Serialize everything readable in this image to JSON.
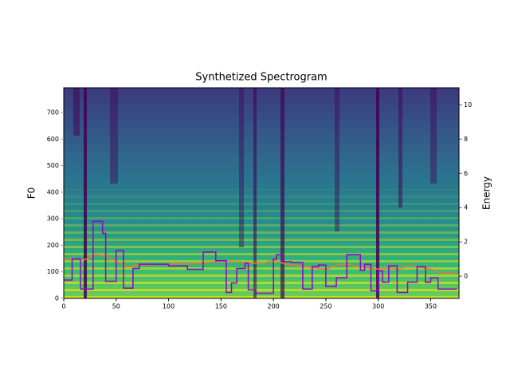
{
  "chart_data": {
    "type": "line",
    "title": "Synthetized Spectrogram",
    "ylabel": "F0",
    "y2label": "Energy",
    "xlim": [
      0,
      377
    ],
    "xticks": [
      0,
      50,
      100,
      150,
      200,
      250,
      300,
      350
    ],
    "ylim": [
      0,
      793
    ],
    "yticks": [
      0,
      100,
      200,
      300,
      400,
      500,
      600,
      700
    ],
    "y2lim": [
      -1.3,
      11
    ],
    "y2ticks": [
      0,
      2,
      4,
      6,
      8,
      10
    ],
    "series": [
      {
        "name": "F0",
        "color": "#f4733a",
        "step": false,
        "x": [
          0,
          10,
          20,
          30,
          40,
          50,
          60,
          70,
          100,
          120,
          150,
          160,
          190,
          200,
          210,
          230,
          250,
          260,
          270,
          280,
          300,
          310,
          320,
          330,
          350,
          360,
          375
        ],
        "values": [
          150,
          150,
          145,
          165,
          160,
          140,
          120,
          125,
          130,
          130,
          140,
          140,
          130,
          145,
          130,
          120,
          110,
          125,
          130,
          120,
          110,
          115,
          110,
          125,
          110,
          95,
          95
        ]
      },
      {
        "name": "Energy",
        "color": "#9400d3",
        "axis": "y2",
        "step": true,
        "x": [
          0,
          8,
          16,
          28,
          37,
          40,
          50,
          57,
          66,
          72,
          100,
          118,
          133,
          145,
          155,
          160,
          165,
          173,
          176,
          183,
          200,
          203,
          208,
          217,
          228,
          237,
          243,
          250,
          260,
          270,
          283,
          287,
          293,
          300,
          304,
          310,
          318,
          328,
          337,
          345,
          350,
          357,
          375
        ],
        "values": [
          -0.23,
          1.0,
          -0.75,
          3.2,
          2.5,
          -0.3,
          1.5,
          -0.7,
          0.45,
          0.7,
          0.6,
          0.4,
          1.4,
          0.9,
          -0.95,
          -0.4,
          0.45,
          0.75,
          -0.8,
          -1.0,
          1.0,
          1.25,
          0.85,
          0.8,
          -0.75,
          0.55,
          0.65,
          -0.6,
          -0.1,
          1.25,
          0.35,
          0.7,
          -0.85,
          0.3,
          -0.35,
          0.6,
          -0.95,
          -0.35,
          0.55,
          -0.35,
          -0.1,
          -0.75,
          -0.75
        ]
      }
    ]
  }
}
